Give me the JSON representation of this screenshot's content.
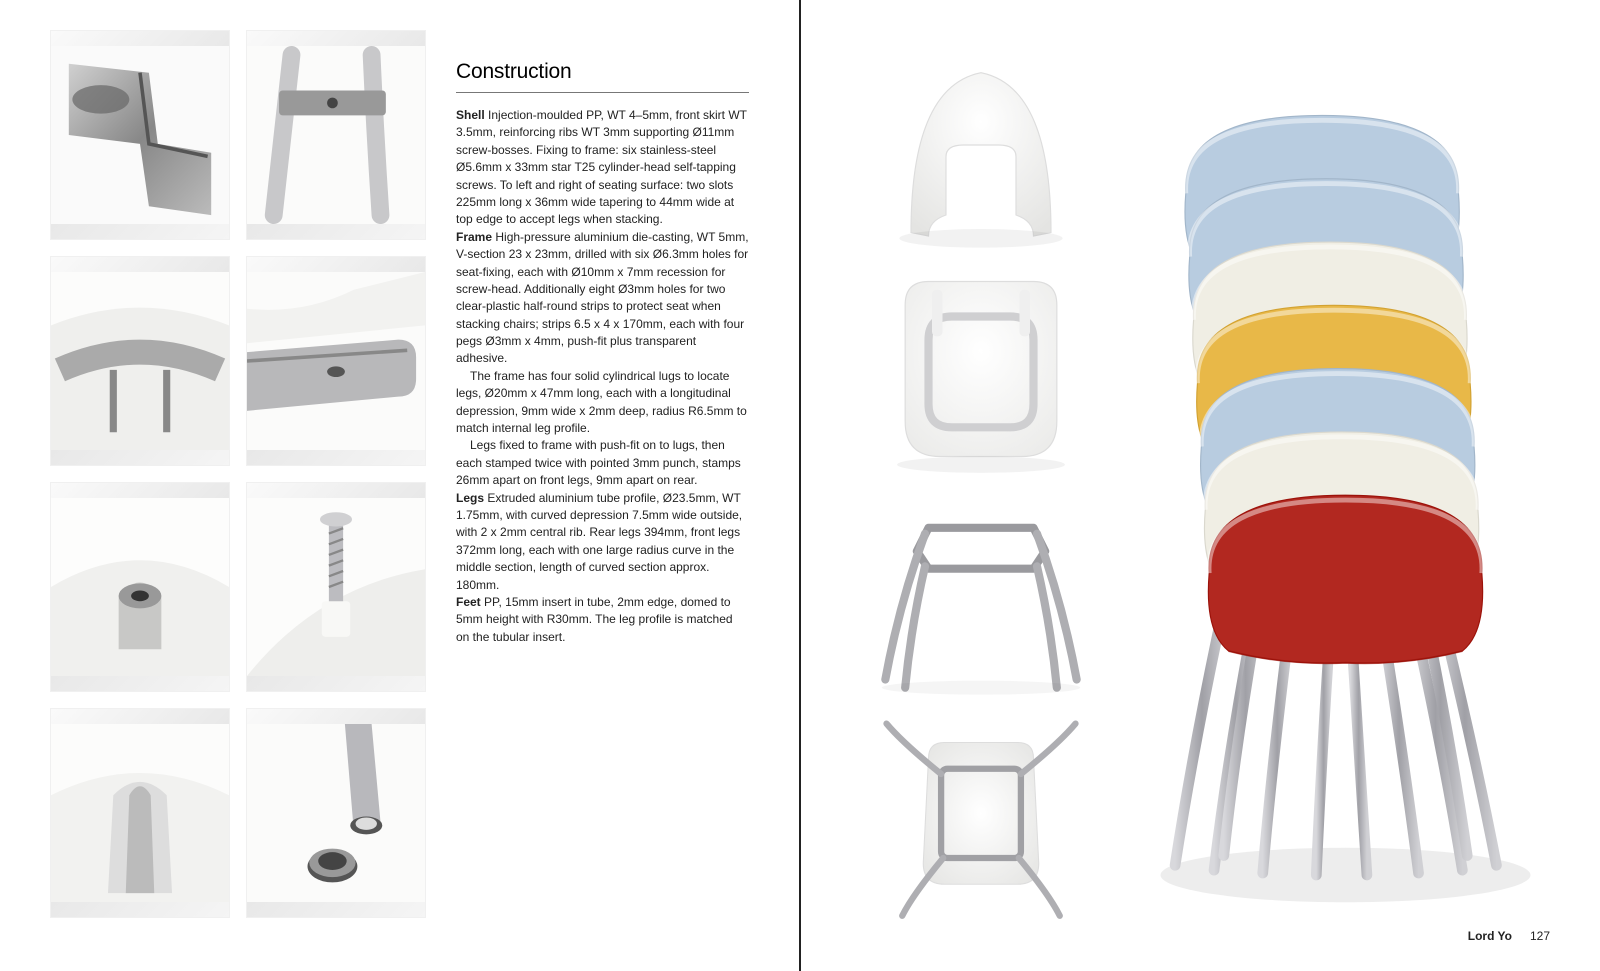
{
  "left_page": {
    "section_title": "Construction",
    "paragraphs": [
      {
        "bold": "Shell",
        "text": " Injection-moulded PP, WT 4–5mm, front skirt WT 3.5mm, reinforcing ribs WT 3mm supporting Ø11mm screw-bosses. Fixing to frame: six stainless-steel Ø5.6mm x 33mm star T25 cylinder-head self-tapping screws. To left and right of seating surface: two slots 225mm long x 36mm wide tapering to 44mm wide at top edge to accept legs when stacking."
      },
      {
        "bold": "Frame",
        "text": " High-pressure aluminium die-casting, WT 5mm, V-section 23 x 23mm, drilled with six Ø6.3mm holes for seat-fixing, each with Ø10mm x 7mm recession for screw-head. Additionally eight Ø3mm holes for two clear-plastic half-round strips to protect seat when stacking chairs; strips 6.5 x 4 x 170mm, each with four pegs Ø3mm x 4mm, push-fit plus transparent adhesive."
      },
      {
        "indent": true,
        "text": "The frame has four solid cylindrical lugs to locate legs, Ø20mm x 47mm long, each with a longitudinal depression, 9mm wide x 2mm deep, radius R6.5mm to match internal leg profile."
      },
      {
        "indent": true,
        "text": "Legs fixed to frame with push-fit on to lugs, then each stamped twice with pointed 3mm punch, stamps 26mm apart on front legs, 9mm apart on rear."
      },
      {
        "bold": "Legs",
        "text": " Extruded aluminium tube profile, Ø23.5mm, WT 1.75mm, with curved depression 7.5mm wide outside, with 2 x 2mm central rib. Rear legs 394mm, front legs 372mm long, each with one large radius curve in the middle section, length of curved section approx. 180mm."
      },
      {
        "bold": "Feet",
        "text": " PP, 15mm insert in tube, 2mm edge, domed to 5mm height with R30mm. The leg profile is matched on the tubular insert."
      }
    ],
    "thumbs": [
      {
        "name": "frame-joint-detail"
      },
      {
        "name": "leg-join-detail"
      },
      {
        "name": "shell-underside"
      },
      {
        "name": "frame-drill-detail"
      },
      {
        "name": "screw-boss-detail"
      },
      {
        "name": "screw-detail"
      },
      {
        "name": "leg-curve-detail"
      },
      {
        "name": "tube-foot-detail"
      }
    ]
  },
  "right_page": {
    "components": [
      {
        "name": "shell-top-view"
      },
      {
        "name": "shell-frame-view"
      },
      {
        "name": "frame-legs-view"
      },
      {
        "name": "chair-underside-view"
      }
    ],
    "hero": {
      "name": "stacked-chairs",
      "chair_colors": [
        "#b8cce0",
        "#b8cce0",
        "#f0eee4",
        "#e8b848",
        "#b8cce0",
        "#f0eee4",
        "#b22820"
      ],
      "leg_color": "#b8b8bc"
    },
    "footer": {
      "name": "Lord Yo",
      "page_number": "127"
    }
  },
  "colors": {
    "page_bg": "#ffffff",
    "text": "#222222",
    "rule": "#777777",
    "metal": "#aeb0b2",
    "metal_dark": "#7c7e80",
    "plastic_light": "#f4f4f2",
    "shadow": "#d8d8d6"
  }
}
